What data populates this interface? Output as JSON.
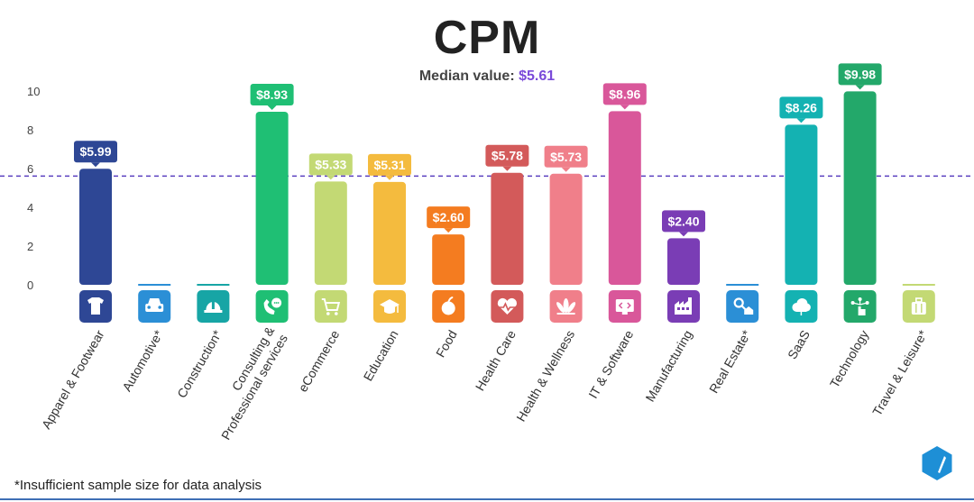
{
  "chart_data": {
    "type": "bar",
    "title": "CPM",
    "subtitle_label": "Median value: ",
    "subtitle_value": "$5.61",
    "median": 5.61,
    "ylim": [
      0,
      10
    ],
    "yticks": [
      0,
      2,
      4,
      6,
      8,
      10
    ],
    "grid": false,
    "categories": [
      "Apparel & Footwear",
      "Automotive*",
      "Construction*",
      "Consulting & Professional services",
      "eCommerce",
      "Education",
      "Food",
      "Health Care",
      "Health & Wellness",
      "IT & Software",
      "Manufacturing",
      "Real Estate*",
      "SaaS",
      "Technology",
      "Travel & Leisure*"
    ],
    "values": [
      5.99,
      null,
      null,
      8.93,
      5.33,
      5.31,
      2.6,
      5.78,
      5.73,
      8.96,
      2.4,
      null,
      8.26,
      9.98,
      null
    ],
    "value_labels": [
      "$5.99",
      "",
      "",
      "$8.93",
      "$5.33",
      "$5.31",
      "$2.60",
      "$5.78",
      "$5.73",
      "$8.96",
      "$2.40",
      "",
      "$8.26",
      "$9.98",
      ""
    ],
    "colors": [
      "#2e4795",
      "#2b8fd6",
      "#17a5a5",
      "#1fbf74",
      "#c3d974",
      "#f4bb3e",
      "#f47c20",
      "#d35a5a",
      "#f07f8a",
      "#d9579a",
      "#7a3db5",
      "#2b8fd6",
      "#14b2b2",
      "#23a86a",
      "#c3d974"
    ],
    "icons": [
      "tshirt-icon",
      "car-icon",
      "hardhat-icon",
      "phone-chat-icon",
      "cart-icon",
      "graduation-cap-icon",
      "apple-icon",
      "heartbeat-icon",
      "lotus-icon",
      "monitor-code-icon",
      "factory-icon",
      "house-key-icon",
      "cloud-icon",
      "network-hand-icon",
      "luggage-icon"
    ],
    "footnote": "*Insufficient sample size for data analysis",
    "logo_icon": "hexagon-logo-icon"
  }
}
